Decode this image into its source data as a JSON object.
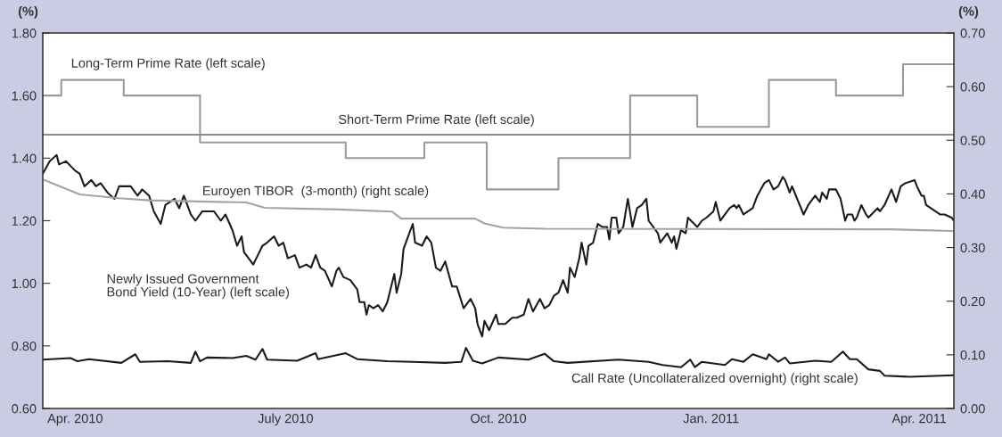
{
  "chart_data": {
    "type": "line",
    "ylabel": "(%)",
    "y2label": "(%)",
    "xlim": [
      "2010-04-01",
      "2011-04-30"
    ],
    "xticks": [
      {
        "value": "2010-04-15",
        "label": "Apr. 2010"
      },
      {
        "value": "2010-07-15",
        "label": "July 2010"
      },
      {
        "value": "2010-10-15",
        "label": "Oct. 2010"
      },
      {
        "value": "2011-01-15",
        "label": "Jan. 2011"
      },
      {
        "value": "2011-04-15",
        "label": "Apr. 2011"
      }
    ],
    "ylim": [
      0.6,
      1.8
    ],
    "yticks": [
      {
        "value": 0.6,
        "label": "0.60"
      },
      {
        "value": 0.8,
        "label": "0.80"
      },
      {
        "value": 1.0,
        "label": "1.00"
      },
      {
        "value": 1.2,
        "label": "1.20"
      },
      {
        "value": 1.4,
        "label": "1.40"
      },
      {
        "value": 1.6,
        "label": "1.60"
      },
      {
        "value": 1.8,
        "label": "1.80"
      }
    ],
    "y2lim": [
      0,
      0.7
    ],
    "y2ticks": [
      {
        "value": 0,
        "label": "0.00"
      },
      {
        "value": 0.1,
        "label": "0.10"
      },
      {
        "value": 0.2,
        "label": "0.20"
      },
      {
        "value": 0.3,
        "label": "0.30"
      },
      {
        "value": 0.4,
        "label": "0.40"
      },
      {
        "value": 0.5,
        "label": "0.50"
      },
      {
        "value": 0.6,
        "label": "0.60"
      },
      {
        "value": 0.7,
        "label": "0.70"
      }
    ],
    "series": [
      {
        "name": "Long-Term Prime Rate (left scale)",
        "type": "step",
        "color": "#9a9a9a",
        "x": [
          "2010-04-01",
          "2010-04-09",
          "2010-05-06",
          "2010-06-08",
          "2010-08-10",
          "2010-09-13",
          "2010-10-10",
          "2010-11-10",
          "2010-12-11",
          "2011-01-09",
          "2011-02-09",
          "2011-03-10",
          "2011-04-08",
          "2011-04-30"
        ],
        "values": [
          1.6,
          1.65,
          1.6,
          1.45,
          1.4,
          1.45,
          1.3,
          1.4,
          1.6,
          1.5,
          1.65,
          1.6,
          1.7,
          1.7
        ]
      },
      {
        "name": "Short-Term Prime Rate (left scale)",
        "type": "line",
        "color": "#8c8c8c",
        "x": [
          "2010-04-01",
          "2011-04-30"
        ],
        "values": [
          1.475,
          1.475
        ]
      },
      {
        "name": "Euroyen TIBOR  (3-month) (right scale)",
        "type": "line",
        "axis": "y2",
        "color": "#a3a3a3",
        "x": [
          "2010-04-01",
          "2010-04-17",
          "2010-05-04",
          "2010-05-17",
          "2010-06-28",
          "2010-07-06",
          "2010-08-07",
          "2010-08-30",
          "2010-09-03",
          "2010-10-05",
          "2010-10-09",
          "2010-10-17",
          "2010-11-04",
          "2011-04-02",
          "2011-04-30"
        ],
        "values": [
          0.427,
          0.399,
          0.392,
          0.388,
          0.384,
          0.374,
          0.371,
          0.367,
          0.354,
          0.354,
          0.345,
          0.337,
          0.335,
          0.334,
          0.331
        ]
      },
      {
        "name": "Newly Issued Government\nBond Yield (10-Year) (left scale)",
        "type": "line",
        "color": "#1a1a1a",
        "x": [
          "2010-04-01",
          "2010-04-04",
          "2010-04-07",
          "2010-04-08",
          "2010-04-11",
          "2010-04-15",
          "2010-04-17",
          "2010-04-19",
          "2010-04-22",
          "2010-04-24",
          "2010-04-26",
          "2010-04-29",
          "2010-05-02",
          "2010-05-04",
          "2010-05-06",
          "2010-05-09",
          "2010-05-12",
          "2010-05-14",
          "2010-05-17",
          "2010-05-19",
          "2010-05-22",
          "2010-05-24",
          "2010-05-28",
          "2010-05-30",
          "2010-06-01",
          "2010-06-04",
          "2010-06-06",
          "2010-06-09",
          "2010-06-14",
          "2010-06-17",
          "2010-06-19",
          "2010-06-22",
          "2010-06-24",
          "2010-06-26",
          "2010-06-27",
          "2010-07-01",
          "2010-07-03",
          "2010-07-05",
          "2010-07-07",
          "2010-07-10",
          "2010-07-12",
          "2010-07-14",
          "2010-07-16",
          "2010-07-19",
          "2010-07-21",
          "2010-07-24",
          "2010-07-26",
          "2010-07-28",
          "2010-07-30",
          "2010-08-01",
          "2010-08-04",
          "2010-08-06",
          "2010-08-07",
          "2010-08-09",
          "2010-08-12",
          "2010-08-15",
          "2010-08-16",
          "2010-08-18",
          "2010-08-19",
          "2010-08-20",
          "2010-08-22",
          "2010-08-24",
          "2010-08-26",
          "2010-08-28",
          "2010-08-30",
          "2010-08-31",
          "2010-09-01",
          "2010-09-03",
          "2010-09-04",
          "2010-09-08",
          "2010-09-09",
          "2010-09-12",
          "2010-09-14",
          "2010-09-16",
          "2010-09-18",
          "2010-09-20",
          "2010-09-22",
          "2010-09-25",
          "2010-09-27",
          "2010-09-30",
          "2010-10-03",
          "2010-10-05",
          "2010-10-06",
          "2010-10-08",
          "2010-10-09",
          "2010-10-11",
          "2010-10-14",
          "2010-10-15",
          "2010-10-18",
          "2010-10-21",
          "2010-10-23",
          "2010-10-26",
          "2010-10-28",
          "2010-10-30",
          "2010-11-02",
          "2010-11-04",
          "2010-11-06",
          "2010-11-08",
          "2010-11-10",
          "2010-11-12",
          "2010-11-14",
          "2010-11-15",
          "2010-11-17",
          "2010-11-19",
          "2010-11-20",
          "2010-11-22",
          "2010-11-23",
          "2010-11-25",
          "2010-11-27",
          "2010-11-29",
          "2010-12-01",
          "2010-12-02",
          "2010-12-03",
          "2010-12-05",
          "2010-12-06",
          "2010-12-08",
          "2010-12-10",
          "2010-12-12",
          "2010-12-14",
          "2010-12-16",
          "2010-12-18",
          "2010-12-19",
          "2010-12-23",
          "2010-12-24",
          "2010-12-27",
          "2010-12-29",
          "2010-12-30",
          "2010-12-31",
          "2011-01-02",
          "2011-01-04",
          "2011-01-05",
          "2011-01-09",
          "2011-01-11",
          "2011-01-13",
          "2011-01-16",
          "2011-01-17",
          "2011-01-19",
          "2011-01-20",
          "2011-01-23",
          "2011-01-25",
          "2011-01-26",
          "2011-01-27",
          "2011-01-29",
          "2011-01-31",
          "2011-02-02",
          "2011-02-04",
          "2011-02-07",
          "2011-02-09",
          "2011-02-11",
          "2011-02-13",
          "2011-02-15",
          "2011-02-16",
          "2011-02-18",
          "2011-02-19",
          "2011-02-24",
          "2011-02-26",
          "2011-03-01",
          "2011-03-03",
          "2011-03-04",
          "2011-03-06",
          "2011-03-07",
          "2011-03-10",
          "2011-03-12",
          "2011-03-14",
          "2011-03-15",
          "2011-03-17",
          "2011-03-18",
          "2011-03-19",
          "2011-03-21",
          "2011-03-23",
          "2011-03-24",
          "2011-03-28",
          "2011-03-29",
          "2011-03-31",
          "2011-04-03",
          "2011-04-05",
          "2011-04-07",
          "2011-04-09",
          "2011-04-13",
          "2011-04-14",
          "2011-04-16",
          "2011-04-17",
          "2011-04-18",
          "2011-04-24",
          "2011-04-26",
          "2011-04-29",
          "2011-04-30"
        ],
        "values": [
          1.35,
          1.39,
          1.41,
          1.38,
          1.39,
          1.36,
          1.35,
          1.31,
          1.33,
          1.31,
          1.32,
          1.29,
          1.27,
          1.31,
          1.31,
          1.31,
          1.28,
          1.3,
          1.28,
          1.23,
          1.19,
          1.25,
          1.27,
          1.24,
          1.28,
          1.22,
          1.2,
          1.23,
          1.23,
          1.2,
          1.22,
          1.17,
          1.12,
          1.15,
          1.1,
          1.06,
          1.09,
          1.12,
          1.13,
          1.15,
          1.12,
          1.13,
          1.08,
          1.09,
          1.05,
          1.06,
          1.05,
          1.09,
          1.05,
          1.04,
          0.99,
          1.04,
          1.05,
          1.02,
          1.01,
          0.98,
          0.94,
          0.94,
          0.9,
          0.93,
          0.92,
          0.93,
          0.91,
          0.94,
          1.0,
          1.03,
          0.97,
          1.03,
          1.11,
          1.19,
          1.13,
          1.12,
          1.15,
          1.13,
          1.05,
          1.04,
          1.07,
          0.99,
          0.99,
          0.92,
          0.95,
          0.92,
          0.87,
          0.83,
          0.88,
          0.85,
          0.9,
          0.87,
          0.87,
          0.89,
          0.89,
          0.9,
          0.95,
          0.91,
          0.95,
          0.92,
          0.93,
          0.96,
          0.97,
          1.01,
          0.97,
          1.05,
          1.02,
          1.08,
          1.13,
          1.06,
          1.12,
          1.13,
          1.19,
          1.18,
          1.18,
          1.14,
          1.21,
          1.21,
          1.16,
          1.18,
          1.27,
          1.18,
          1.24,
          1.25,
          1.27,
          1.2,
          1.16,
          1.13,
          1.16,
          1.13,
          1.15,
          1.11,
          1.17,
          1.16,
          1.21,
          1.18,
          1.2,
          1.21,
          1.23,
          1.26,
          1.2,
          1.21,
          1.24,
          1.25,
          1.24,
          1.25,
          1.22,
          1.23,
          1.24,
          1.28,
          1.32,
          1.33,
          1.3,
          1.31,
          1.34,
          1.33,
          1.29,
          1.31,
          1.22,
          1.25,
          1.28,
          1.26,
          1.29,
          1.27,
          1.3,
          1.3,
          1.27,
          1.2,
          1.22,
          1.22,
          1.2,
          1.21,
          1.25,
          1.22,
          1.21,
          1.24,
          1.23,
          1.25,
          1.3,
          1.26,
          1.31,
          1.32,
          1.33,
          1.31,
          1.28,
          1.28,
          1.25,
          1.22,
          1.22,
          1.21,
          1.2
        ]
      },
      {
        "name": "Call Rate (Uncollateralized overnight) (right scale)",
        "type": "line",
        "axis": "y2",
        "color": "#1a1a1a",
        "x": [
          "2010-04-01",
          "2010-04-13",
          "2010-04-16",
          "2010-04-21",
          "2010-05-05",
          "2010-05-11",
          "2010-05-13",
          "2010-05-25",
          "2010-06-04",
          "2010-06-06",
          "2010-06-08",
          "2010-06-11",
          "2010-06-22",
          "2010-06-28",
          "2010-07-02",
          "2010-07-05",
          "2010-07-07",
          "2010-07-20",
          "2010-07-28",
          "2010-07-29",
          "2010-08-10",
          "2010-08-15",
          "2010-08-28",
          "2010-09-08",
          "2010-09-22",
          "2010-09-29",
          "2010-10-01",
          "2010-10-04",
          "2010-10-08",
          "2010-10-15",
          "2010-10-28",
          "2010-11-04",
          "2010-11-08",
          "2010-11-14",
          "2010-12-06",
          "2010-12-19",
          "2010-12-25",
          "2011-01-02",
          "2011-01-06",
          "2011-01-08",
          "2011-01-11",
          "2011-01-21",
          "2011-01-24",
          "2011-01-29",
          "2011-02-02",
          "2011-02-08",
          "2011-02-09",
          "2011-02-13",
          "2011-02-16",
          "2011-02-18",
          "2011-03-01",
          "2011-03-08",
          "2011-03-13",
          "2011-03-16",
          "2011-03-19",
          "2011-03-24",
          "2011-03-29",
          "2011-03-31",
          "2011-04-11",
          "2011-04-30"
        ],
        "values": [
          0.091,
          0.094,
          0.088,
          0.092,
          0.085,
          0.101,
          0.087,
          0.088,
          0.085,
          0.106,
          0.088,
          0.095,
          0.094,
          0.098,
          0.091,
          0.111,
          0.091,
          0.089,
          0.103,
          0.092,
          0.103,
          0.092,
          0.088,
          0.087,
          0.085,
          0.087,
          0.113,
          0.089,
          0.084,
          0.095,
          0.091,
          0.102,
          0.088,
          0.085,
          0.091,
          0.087,
          0.081,
          0.077,
          0.091,
          0.077,
          0.087,
          0.081,
          0.092,
          0.087,
          0.101,
          0.092,
          0.101,
          0.087,
          0.095,
          0.084,
          0.089,
          0.087,
          0.106,
          0.092,
          0.092,
          0.073,
          0.07,
          0.061,
          0.059,
          0.062
        ]
      }
    ]
  }
}
